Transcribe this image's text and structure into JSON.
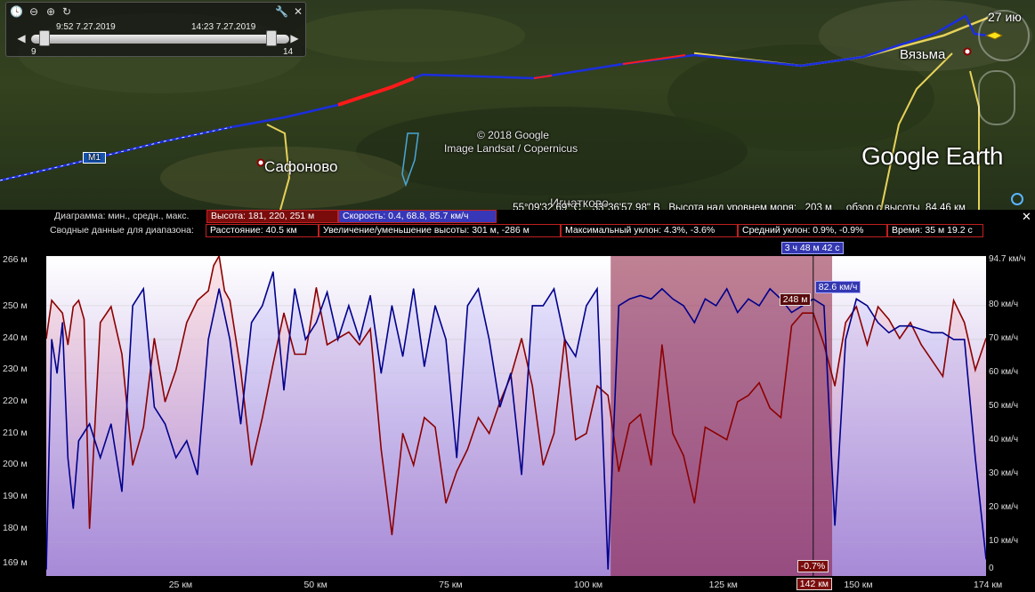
{
  "map": {
    "cities": [
      {
        "name": "Сафоново"
      },
      {
        "name": "Вязьма"
      }
    ],
    "road_label": "M1",
    "village_label": "Игнатково",
    "copyright_line1": "© 2018 Google",
    "copyright_line2": "Image Landsat / Copernicus",
    "logo": "Google Earth",
    "date_label": "27 ию",
    "status_bar": "55°09'32.69\" С    33°36'57.98\" В   Высота над уровнем моря:   203 м     обзор с высоты  84.46 км"
  },
  "time_slider": {
    "start_time": "9:52 7.27.2019",
    "end_time": "14:23 7.27.2019",
    "range_start": "9",
    "range_end": "14",
    "start_fraction": 0.05,
    "end_fraction": 0.93
  },
  "chart_header": {
    "row1_label": "Диаграмма: мин., средн., макс.",
    "altitude_box": "Высота: 181, 220, 251 м",
    "speed_box": "Скорость: 0.4, 68.8, 85.7 км/ч",
    "row2_label": "Сводные данные для диапазона:",
    "distance_box": "Расстояние: 40.5 км",
    "elevation_box": "Увеличение/уменьшение высоты: 301 м, -286 м",
    "max_slope_box": "Максимальный уклон: 4.3%, -3.6%",
    "avg_slope_box": "Средний уклон: 0.9%, -0.9%",
    "time_box": "Время: 35 м 19.2 с",
    "close_label": "✕"
  },
  "chart_data": {
    "type": "line",
    "xlabel": "",
    "x_ticks": [
      "25 км",
      "50 км",
      "75 км",
      "100 км",
      "125 км",
      "150 км",
      "174 км"
    ],
    "x_tick_values": [
      25,
      50,
      75,
      100,
      125,
      150,
      174
    ],
    "xlim": [
      0,
      174
    ],
    "y_left_ticks": [
      "266 м",
      "250 м",
      "240 м",
      "230 м",
      "220 м",
      "210 м",
      "200 м",
      "190 м",
      "180 м",
      "169 м"
    ],
    "y_left_values": [
      266,
      250,
      240,
      230,
      220,
      210,
      200,
      190,
      180,
      169
    ],
    "y_left_lim": [
      165,
      266
    ],
    "y_right_ticks": [
      "94.7 км/ч",
      "80 км/ч",
      "70 км/ч",
      "60 км/ч",
      "50 км/ч",
      "40 км/ч",
      "30 км/ч",
      "20 км/ч",
      "10 км/ч",
      "0"
    ],
    "y_right_values": [
      94.7,
      80,
      70,
      60,
      50,
      40,
      30,
      20,
      10,
      0
    ],
    "y_right_lim": [
      0,
      94.7
    ],
    "selection_range_km": [
      104.5,
      145.5
    ],
    "cursor_km": 142,
    "cursor_time": "3 ч 48 м 42 с",
    "cursor_altitude": "248 м",
    "cursor_speed": "82.6 км/ч",
    "cursor_slope": "-0.7%",
    "cursor_distance": "142 км",
    "series": [
      {
        "name": "Высота",
        "color": "#8b0000",
        "x": [
          0,
          1,
          2,
          3,
          4,
          5,
          6,
          7,
          8,
          10,
          12,
          14,
          16,
          18,
          20,
          22,
          24,
          26,
          28,
          30,
          31,
          32,
          33,
          34,
          36,
          38,
          40,
          42,
          44,
          46,
          48,
          50,
          52,
          54,
          56,
          58,
          60,
          62,
          64,
          66,
          68,
          70,
          72,
          74,
          76,
          78,
          80,
          82,
          84,
          86,
          88,
          90,
          92,
          94,
          96,
          98,
          100,
          102,
          104,
          106,
          108,
          110,
          112,
          114,
          116,
          118,
          120,
          122,
          124,
          126,
          128,
          130,
          132,
          134,
          136,
          138,
          140,
          142,
          144,
          146,
          148,
          150,
          152,
          154,
          156,
          158,
          160,
          162,
          164,
          166,
          168,
          170,
          172,
          174
        ],
        "y": [
          240,
          252,
          250,
          248,
          238,
          250,
          252,
          246,
          180,
          245,
          250,
          235,
          200,
          212,
          240,
          220,
          230,
          245,
          252,
          255,
          263,
          266,
          255,
          252,
          230,
          200,
          215,
          232,
          248,
          235,
          235,
          256,
          238,
          240,
          242,
          238,
          243,
          205,
          178,
          210,
          200,
          215,
          212,
          188,
          198,
          205,
          215,
          210,
          220,
          228,
          240,
          225,
          200,
          210,
          240,
          208,
          210,
          225,
          222,
          198,
          213,
          216,
          200,
          238,
          210,
          203,
          188,
          212,
          210,
          208,
          220,
          222,
          226,
          218,
          215,
          244,
          248,
          248,
          238,
          225,
          245,
          250,
          238,
          250,
          246,
          240,
          245,
          238,
          233,
          228,
          252,
          245,
          230,
          240
        ]
      },
      {
        "name": "Скорость",
        "color": "#00008b",
        "x": [
          0,
          1,
          2,
          3,
          4,
          5,
          6,
          8,
          10,
          12,
          14,
          16,
          18,
          20,
          22,
          24,
          26,
          28,
          30,
          32,
          34,
          36,
          38,
          40,
          42,
          44,
          46,
          48,
          50,
          52,
          54,
          56,
          58,
          60,
          62,
          64,
          66,
          68,
          70,
          72,
          74,
          76,
          78,
          80,
          82,
          84,
          86,
          88,
          90,
          92,
          94,
          96,
          98,
          100,
          102,
          104,
          106,
          108,
          110,
          112,
          114,
          116,
          118,
          120,
          122,
          124,
          126,
          128,
          130,
          132,
          134,
          136,
          138,
          140,
          142,
          144,
          146,
          148,
          150,
          152,
          154,
          156,
          158,
          160,
          162,
          164,
          166,
          168,
          170,
          172,
          174
        ],
        "y": [
          2,
          70,
          60,
          75,
          35,
          20,
          40,
          45,
          35,
          45,
          25,
          80,
          85,
          50,
          45,
          35,
          40,
          30,
          70,
          85,
          70,
          45,
          75,
          80,
          90,
          55,
          85,
          70,
          75,
          84,
          70,
          80,
          70,
          83,
          60,
          80,
          65,
          85,
          62,
          80,
          70,
          35,
          80,
          85,
          70,
          50,
          60,
          30,
          80,
          80,
          85,
          70,
          65,
          80,
          85,
          2,
          80,
          82,
          83,
          82,
          85,
          82,
          80,
          75,
          82,
          80,
          85,
          78,
          82,
          80,
          85,
          82,
          78,
          80,
          82,
          80,
          15,
          70,
          82,
          80,
          75,
          72,
          74,
          74,
          73,
          72,
          72,
          70,
          70,
          35,
          5
        ]
      }
    ]
  }
}
